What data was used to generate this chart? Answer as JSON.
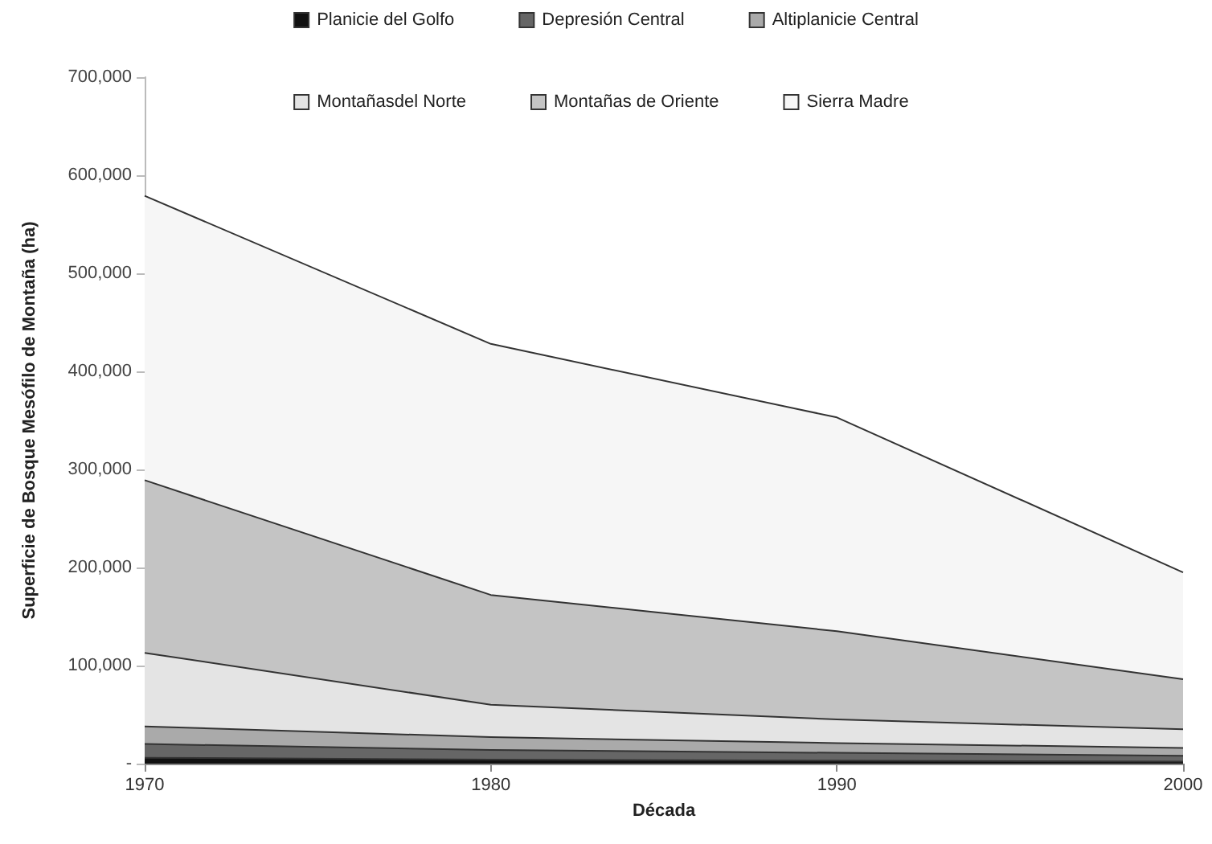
{
  "chart_data": {
    "type": "area",
    "stacked": true,
    "xlabel": "Década",
    "ylabel": "Superficie de Bosque Mesófilo de Montaña (ha)",
    "categories": [
      "1970",
      "1980",
      "1990",
      "2000"
    ],
    "series": [
      {
        "name": "Planicie del Golfo",
        "color": "#111111",
        "values": [
          6000,
          4000,
          3000,
          2000
        ]
      },
      {
        "name": "Depresión Central",
        "color": "#666666",
        "values": [
          14000,
          10000,
          8000,
          6000
        ]
      },
      {
        "name": "Altiplanicie Central",
        "color": "#aaaaaa",
        "values": [
          18000,
          13000,
          10000,
          8000
        ]
      },
      {
        "name": "Montañasdel Norte",
        "color": "#e4e4e4",
        "values": [
          75000,
          33000,
          24000,
          19000
        ]
      },
      {
        "name": "Montañas de Oriente",
        "color": "#c4c4c4",
        "values": [
          176000,
          112000,
          90000,
          51000
        ]
      },
      {
        "name": "Sierra Madre",
        "color": "#f6f6f6",
        "values": [
          290000,
          256000,
          218000,
          109000
        ]
      }
    ],
    "ylim": [
      0,
      700000
    ],
    "yticks": [
      {
        "value": 0,
        "label": "-"
      },
      {
        "value": 100000,
        "label": "100,000"
      },
      {
        "value": 200000,
        "label": "200,000"
      },
      {
        "value": 300000,
        "label": "300,000"
      },
      {
        "value": 400000,
        "label": "400,000"
      },
      {
        "value": 500000,
        "label": "500,000"
      },
      {
        "value": 600000,
        "label": "600,000"
      },
      {
        "value": 700000,
        "label": "700,000"
      }
    ],
    "grid": false,
    "legend": "top"
  }
}
